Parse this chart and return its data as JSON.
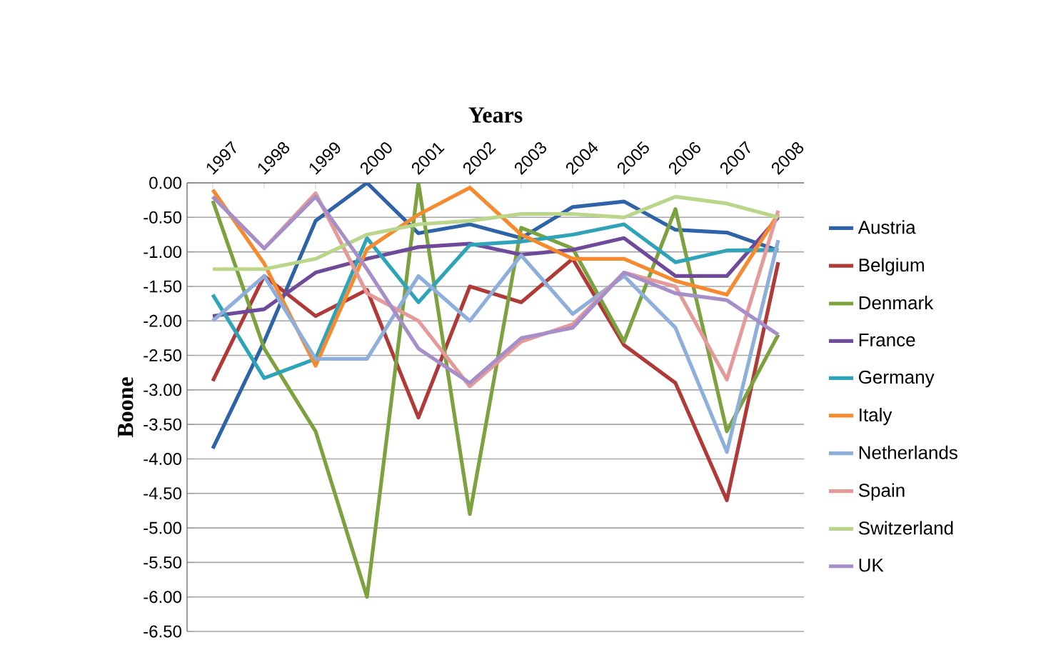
{
  "chart_data": {
    "type": "line",
    "xlabel": "Years",
    "ylabel": "Boone",
    "categories": [
      "1997",
      "1998",
      "1999",
      "2000",
      "2001",
      "2002",
      "2003",
      "2004",
      "2005",
      "2006",
      "2007",
      "2008"
    ],
    "ylim": [
      -6.5,
      0
    ],
    "yticks": [
      {
        "value": 0,
        "label": "0.00"
      },
      {
        "value": -0.5,
        "label": "-0.50"
      },
      {
        "value": -1,
        "label": "-1.00"
      },
      {
        "value": -1.5,
        "label": "-1.50"
      },
      {
        "value": -2,
        "label": "-2.00"
      },
      {
        "value": -2.5,
        "label": "-2.50"
      },
      {
        "value": -3,
        "label": "-3.00"
      },
      {
        "value": -3.5,
        "label": "-3.50"
      },
      {
        "value": -4,
        "label": "-4.00"
      },
      {
        "value": -4.5,
        "label": "-4.50"
      },
      {
        "value": -5,
        "label": "-5.00"
      },
      {
        "value": -5.5,
        "label": "-5.50"
      },
      {
        "value": -6,
        "label": "-6.00"
      },
      {
        "value": -6.5,
        "label": "-6.50"
      }
    ],
    "grid": "y",
    "legend": "right",
    "marker": "none",
    "line_style": "solid",
    "series": [
      {
        "name": "Austria",
        "color": "#2e63a8",
        "values": [
          -3.85,
          -2.3,
          -0.55,
          0,
          -0.73,
          -0.6,
          -0.8,
          -0.35,
          -0.27,
          -0.68,
          -0.72,
          -0.98
        ]
      },
      {
        "name": "Belgium",
        "color": "#b03a37",
        "values": [
          -2.87,
          -1.35,
          -1.93,
          -1.55,
          -3.4,
          -1.5,
          -1.73,
          -1.1,
          -2.35,
          -2.9,
          -4.6,
          -1.15
        ]
      },
      {
        "name": "Denmark",
        "color": "#7ba23f",
        "values": [
          -0.26,
          -2.4,
          -3.6,
          -6.0,
          0,
          -4.8,
          -0.65,
          -0.95,
          -2.3,
          -0.38,
          -3.6,
          -2.2
        ]
      },
      {
        "name": "France",
        "color": "#6f4a9a",
        "values": [
          -1.93,
          -1.83,
          -1.3,
          -1.1,
          -0.93,
          -0.88,
          -1.04,
          -0.97,
          -0.8,
          -1.35,
          -1.35,
          -0.5
        ]
      },
      {
        "name": "Germany",
        "color": "#2fa3b8",
        "values": [
          -1.62,
          -2.83,
          -2.55,
          -0.8,
          -1.73,
          -0.9,
          -0.85,
          -0.75,
          -0.6,
          -1.15,
          -0.98,
          -0.97
        ]
      },
      {
        "name": "Italy",
        "color": "#f58a2e",
        "values": [
          -0.1,
          -1.17,
          -2.65,
          -0.96,
          -0.46,
          -0.07,
          -0.75,
          -1.1,
          -1.1,
          -1.42,
          -1.62,
          -0.45
        ]
      },
      {
        "name": "Netherlands",
        "color": "#8eaedb",
        "values": [
          -2.0,
          -1.35,
          -2.55,
          -2.55,
          -1.35,
          -2.0,
          -1.05,
          -1.9,
          -1.35,
          -2.1,
          -3.9,
          -0.83
        ]
      },
      {
        "name": "Spain",
        "color": "#e59a9a",
        "values": [
          -0.2,
          -0.95,
          -0.15,
          -1.6,
          -2.0,
          -2.95,
          -2.3,
          -2.05,
          -1.3,
          -1.5,
          -2.85,
          -0.4
        ]
      },
      {
        "name": "Switzerland",
        "color": "#b9d68a",
        "values": [
          -1.25,
          -1.25,
          -1.1,
          -0.75,
          -0.6,
          -0.55,
          -0.45,
          -0.45,
          -0.5,
          -0.2,
          -0.3,
          -0.5
        ]
      },
      {
        "name": "UK",
        "color": "#a68fc8",
        "values": [
          -0.2,
          -0.95,
          -0.2,
          -1.25,
          -2.4,
          -2.9,
          -2.25,
          -2.1,
          -1.3,
          -1.6,
          -1.7,
          -2.2
        ]
      }
    ]
  }
}
